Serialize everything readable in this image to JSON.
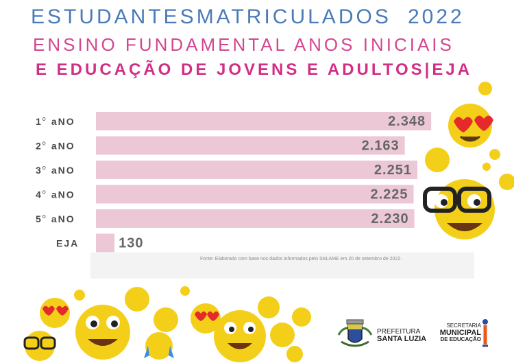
{
  "header": {
    "title_line1": "ESTUDANTESMATRICULADOS",
    "year": "2022",
    "title_line2": "ENSINO FUNDAMENTAL  ANOS INICIAIS",
    "title_line3": "E EDUCAÇÃO DE JOVENS E ADULTOS|EJA"
  },
  "colors": {
    "bar": "#ecc8d6",
    "label": "#4a4a4a",
    "title_blue": "#4a7ab8",
    "title_pink": "#d3478f"
  },
  "chart_data": {
    "type": "bar",
    "orientation": "horizontal",
    "title": "ESTUDANTESMATRICULADOS 2022 ENSINO FUNDAMENTAL ANOS INICIAIS E EDUCAÇÃO DE JOVENS E ADULTOS|EJA",
    "categories": [
      {
        "ordinal": "1",
        "sup": "o",
        "rest": "aNO"
      },
      {
        "ordinal": "2",
        "sup": "o",
        "rest": "aNO"
      },
      {
        "ordinal": "3",
        "sup": "o",
        "rest": "aNO"
      },
      {
        "ordinal": "4",
        "sup": "o",
        "rest": "aNO"
      },
      {
        "ordinal": "5",
        "sup": "o",
        "rest": "aNO"
      },
      {
        "ordinal": "EJA",
        "sup": "",
        "rest": ""
      }
    ],
    "values": [
      2348,
      2163,
      2251,
      2225,
      2230,
      130
    ],
    "value_labels": [
      "2.348",
      "2.163",
      "2.251",
      "2.225",
      "2.230",
      "130"
    ],
    "xlim": [
      0,
      2400
    ],
    "xlabel": "",
    "ylabel": ""
  },
  "source_note": "Fonte: Elaborado com base nos dados informados pelo SisLAME em 20 de setembro de 2022.",
  "logos": {
    "prefeitura_line1": "PREFEITURA",
    "prefeitura_line2": "SANTA LUZIA",
    "secretaria_line1": "SECRETARIA",
    "secretaria_line2": "MUNICIPAL",
    "secretaria_line3": "DE EDUCAÇÃO"
  }
}
